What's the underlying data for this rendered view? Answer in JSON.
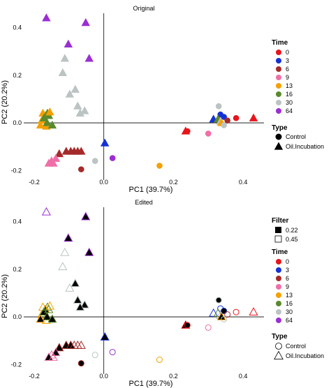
{
  "chart_data": [
    {
      "type": "scatter",
      "title": "Original",
      "xlabel": "PC1 (39.7%)",
      "ylabel": "PC2 (20.2%)",
      "xlim": [
        -0.23,
        0.46
      ],
      "ylim": [
        -0.24,
        0.46
      ],
      "x_ticks": [
        -0.2,
        0.0,
        0.2,
        0.4
      ],
      "x_tick_labels": [
        "-0.2",
        "0.0",
        "0.2",
        "0.4"
      ],
      "y_ticks": [
        -0.2,
        0.0,
        0.2,
        0.4
      ],
      "y_tick_labels": [
        "-0.2",
        "0.0",
        "0.2",
        "0.4"
      ],
      "zero_lines": true,
      "grid": false,
      "points": [
        {
          "x": -0.175,
          "y": 0.04,
          "time": "13",
          "type": "Oil.Incubation"
        },
        {
          "x": -0.168,
          "y": 0.03,
          "time": "13",
          "type": "Oil.Incubation"
        },
        {
          "x": -0.178,
          "y": 0.01,
          "time": "13",
          "type": "Oil.Incubation"
        },
        {
          "x": -0.182,
          "y": -0.01,
          "time": "13",
          "type": "Oil.Incubation"
        },
        {
          "x": -0.165,
          "y": -0.015,
          "time": "13",
          "type": "Oil.Incubation"
        },
        {
          "x": -0.172,
          "y": 0.02,
          "time": "16",
          "type": "Oil.Incubation"
        },
        {
          "x": -0.158,
          "y": 0.03,
          "time": "16",
          "type": "Oil.Incubation"
        },
        {
          "x": -0.163,
          "y": 0.0,
          "time": "16",
          "type": "Oil.Incubation"
        },
        {
          "x": -0.148,
          "y": -0.01,
          "time": "16",
          "type": "Oil.Incubation"
        },
        {
          "x": -0.162,
          "y": 0.04,
          "time": "16",
          "type": "Oil.Incubation"
        },
        {
          "x": -0.155,
          "y": 0.045,
          "time": "13",
          "type": "Oil.Incubation"
        },
        {
          "x": -0.165,
          "y": 0.44,
          "time": "64",
          "type": "Oil.Incubation"
        },
        {
          "x": -0.052,
          "y": 0.42,
          "time": "64",
          "type": "Oil.Incubation"
        },
        {
          "x": -0.102,
          "y": 0.33,
          "time": "64",
          "type": "Oil.Incubation"
        },
        {
          "x": -0.042,
          "y": 0.27,
          "time": "64",
          "type": "Oil.Incubation"
        },
        {
          "x": -0.112,
          "y": 0.27,
          "time": "30",
          "type": "Oil.Incubation"
        },
        {
          "x": -0.118,
          "y": 0.21,
          "time": "30",
          "type": "Oil.Incubation"
        },
        {
          "x": -0.082,
          "y": 0.14,
          "time": "30",
          "type": "Oil.Incubation"
        },
        {
          "x": -0.098,
          "y": 0.12,
          "time": "30",
          "type": "Oil.Incubation"
        },
        {
          "x": -0.075,
          "y": 0.07,
          "time": "30",
          "type": "Oil.Incubation"
        },
        {
          "x": -0.055,
          "y": 0.05,
          "time": "30",
          "type": "Oil.Incubation"
        },
        {
          "x": -0.068,
          "y": 0.04,
          "time": "30",
          "type": "Oil.Incubation"
        },
        {
          "x": -0.108,
          "y": -0.12,
          "time": "6",
          "type": "Oil.Incubation"
        },
        {
          "x": -0.095,
          "y": -0.12,
          "time": "6",
          "type": "Oil.Incubation"
        },
        {
          "x": -0.085,
          "y": -0.12,
          "time": "6",
          "type": "Oil.Incubation"
        },
        {
          "x": -0.075,
          "y": -0.12,
          "time": "6",
          "type": "Oil.Incubation"
        },
        {
          "x": -0.065,
          "y": -0.12,
          "time": "6",
          "type": "Oil.Incubation"
        },
        {
          "x": -0.128,
          "y": -0.13,
          "time": "6",
          "type": "Oil.Incubation"
        },
        {
          "x": -0.138,
          "y": -0.15,
          "time": "9",
          "type": "Oil.Incubation"
        },
        {
          "x": -0.15,
          "y": -0.16,
          "time": "9",
          "type": "Oil.Incubation"
        },
        {
          "x": -0.158,
          "y": -0.17,
          "time": "9",
          "type": "Oil.Incubation"
        },
        {
          "x": -0.145,
          "y": -0.17,
          "time": "9",
          "type": "Oil.Incubation"
        },
        {
          "x": -0.065,
          "y": -0.195,
          "time": "6",
          "type": "Control"
        },
        {
          "x": -0.025,
          "y": -0.16,
          "time": "30",
          "type": "Control"
        },
        {
          "x": 0.003,
          "y": -0.085,
          "time": "3",
          "type": "Oil.Incubation"
        },
        {
          "x": 0.025,
          "y": -0.148,
          "time": "64",
          "type": "Control"
        },
        {
          "x": 0.16,
          "y": -0.18,
          "time": "13",
          "type": "Control"
        },
        {
          "x": 0.235,
          "y": -0.035,
          "time": "0",
          "type": "Oil.Incubation"
        },
        {
          "x": 0.24,
          "y": -0.035,
          "time": "0",
          "type": "Control"
        },
        {
          "x": 0.3,
          "y": -0.045,
          "time": "9",
          "type": "Control"
        },
        {
          "x": 0.315,
          "y": 0.015,
          "time": "3",
          "type": "Oil.Incubation"
        },
        {
          "x": 0.33,
          "y": 0.07,
          "time": "30",
          "type": "Control"
        },
        {
          "x": 0.335,
          "y": 0.035,
          "time": "3",
          "type": "Control"
        },
        {
          "x": 0.345,
          "y": 0.025,
          "time": "3",
          "type": "Control"
        },
        {
          "x": 0.328,
          "y": 0.015,
          "time": "16",
          "type": "Oil.Incubation"
        },
        {
          "x": 0.335,
          "y": 0.005,
          "time": "30",
          "type": "Oil.Incubation"
        },
        {
          "x": 0.338,
          "y": 0.0,
          "time": "13",
          "type": "Oil.Incubation"
        },
        {
          "x": 0.345,
          "y": -0.01,
          "time": "30",
          "type": "Control"
        },
        {
          "x": 0.355,
          "y": 0.01,
          "time": "6",
          "type": "Control"
        },
        {
          "x": 0.38,
          "y": 0.02,
          "time": "0",
          "type": "Control"
        },
        {
          "x": 0.43,
          "y": 0.02,
          "time": "0",
          "type": "Oil.Incubation"
        }
      ]
    },
    {
      "type": "scatter",
      "title": "Edited",
      "xlabel": "PC1 (39.7%)",
      "ylabel": "PC2 (20.2%)",
      "xlim": [
        -0.23,
        0.46
      ],
      "ylim": [
        -0.24,
        0.46
      ],
      "x_ticks": [
        -0.2,
        0.0,
        0.2,
        0.4
      ],
      "x_tick_labels": [
        "-0.2",
        "0.0",
        "0.2",
        "0.4"
      ],
      "y_ticks": [
        -0.2,
        0.0,
        0.2,
        0.4
      ],
      "y_tick_labels": [
        "-0.2",
        "0.0",
        "0.2",
        "0.4"
      ],
      "zero_lines": true,
      "grid": false,
      "points": [
        {
          "x": -0.175,
          "y": 0.04,
          "time": "13",
          "type": "Oil.Incubation",
          "filter": "0.45"
        },
        {
          "x": -0.168,
          "y": 0.03,
          "time": "13",
          "type": "Oil.Incubation",
          "filter": "0.22"
        },
        {
          "x": -0.178,
          "y": 0.01,
          "time": "13",
          "type": "Oil.Incubation",
          "filter": "0.45"
        },
        {
          "x": -0.182,
          "y": -0.01,
          "time": "13",
          "type": "Oil.Incubation",
          "filter": "0.22"
        },
        {
          "x": -0.165,
          "y": -0.015,
          "time": "13",
          "type": "Oil.Incubation",
          "filter": "0.45"
        },
        {
          "x": -0.172,
          "y": 0.02,
          "time": "16",
          "type": "Oil.Incubation",
          "filter": "0.22"
        },
        {
          "x": -0.158,
          "y": 0.03,
          "time": "16",
          "type": "Oil.Incubation",
          "filter": "0.45"
        },
        {
          "x": -0.163,
          "y": 0.0,
          "time": "16",
          "type": "Oil.Incubation",
          "filter": "0.22"
        },
        {
          "x": -0.148,
          "y": -0.01,
          "time": "16",
          "type": "Oil.Incubation",
          "filter": "0.22"
        },
        {
          "x": -0.162,
          "y": 0.04,
          "time": "16",
          "type": "Oil.Incubation",
          "filter": "0.45"
        },
        {
          "x": -0.155,
          "y": 0.045,
          "time": "13",
          "type": "Oil.Incubation",
          "filter": "0.45"
        },
        {
          "x": -0.165,
          "y": 0.44,
          "time": "64",
          "type": "Oil.Incubation",
          "filter": "0.45"
        },
        {
          "x": -0.052,
          "y": 0.42,
          "time": "64",
          "type": "Oil.Incubation",
          "filter": "0.22"
        },
        {
          "x": -0.102,
          "y": 0.33,
          "time": "64",
          "type": "Oil.Incubation",
          "filter": "0.22"
        },
        {
          "x": -0.042,
          "y": 0.27,
          "time": "64",
          "type": "Oil.Incubation",
          "filter": "0.22"
        },
        {
          "x": -0.112,
          "y": 0.27,
          "time": "30",
          "type": "Oil.Incubation",
          "filter": "0.45"
        },
        {
          "x": -0.118,
          "y": 0.21,
          "time": "30",
          "type": "Oil.Incubation",
          "filter": "0.45"
        },
        {
          "x": -0.082,
          "y": 0.14,
          "time": "30",
          "type": "Oil.Incubation",
          "filter": "0.22"
        },
        {
          "x": -0.098,
          "y": 0.12,
          "time": "30",
          "type": "Oil.Incubation",
          "filter": "0.45"
        },
        {
          "x": -0.075,
          "y": 0.07,
          "time": "30",
          "type": "Oil.Incubation",
          "filter": "0.22"
        },
        {
          "x": -0.055,
          "y": 0.05,
          "time": "30",
          "type": "Oil.Incubation",
          "filter": "0.22"
        },
        {
          "x": -0.068,
          "y": 0.04,
          "time": "30",
          "type": "Oil.Incubation",
          "filter": "0.22"
        },
        {
          "x": -0.108,
          "y": -0.12,
          "time": "6",
          "type": "Oil.Incubation",
          "filter": "0.22"
        },
        {
          "x": -0.095,
          "y": -0.12,
          "time": "6",
          "type": "Oil.Incubation",
          "filter": "0.22"
        },
        {
          "x": -0.085,
          "y": -0.12,
          "time": "6",
          "type": "Oil.Incubation",
          "filter": "0.45"
        },
        {
          "x": -0.075,
          "y": -0.12,
          "time": "6",
          "type": "Oil.Incubation",
          "filter": "0.45"
        },
        {
          "x": -0.065,
          "y": -0.12,
          "time": "6",
          "type": "Oil.Incubation",
          "filter": "0.45"
        },
        {
          "x": -0.128,
          "y": -0.13,
          "time": "6",
          "type": "Oil.Incubation",
          "filter": "0.22"
        },
        {
          "x": -0.138,
          "y": -0.15,
          "time": "9",
          "type": "Oil.Incubation",
          "filter": "0.22"
        },
        {
          "x": -0.15,
          "y": -0.16,
          "time": "9",
          "type": "Oil.Incubation",
          "filter": "0.45"
        },
        {
          "x": -0.158,
          "y": -0.17,
          "time": "9",
          "type": "Oil.Incubation",
          "filter": "0.22"
        },
        {
          "x": -0.145,
          "y": -0.17,
          "time": "9",
          "type": "Oil.Incubation",
          "filter": "0.45"
        },
        {
          "x": -0.065,
          "y": -0.195,
          "time": "6",
          "type": "Control",
          "filter": "0.22"
        },
        {
          "x": -0.025,
          "y": -0.16,
          "time": "30",
          "type": "Control",
          "filter": "0.45"
        },
        {
          "x": 0.003,
          "y": -0.085,
          "time": "3",
          "type": "Oil.Incubation",
          "filter": "0.22"
        },
        {
          "x": 0.025,
          "y": -0.148,
          "time": "64",
          "type": "Control",
          "filter": "0.45"
        },
        {
          "x": 0.16,
          "y": -0.18,
          "time": "13",
          "type": "Control",
          "filter": "0.45"
        },
        {
          "x": 0.235,
          "y": -0.035,
          "time": "0",
          "type": "Oil.Incubation",
          "filter": "0.22"
        },
        {
          "x": 0.24,
          "y": -0.035,
          "time": "0",
          "type": "Control",
          "filter": "0.22"
        },
        {
          "x": 0.3,
          "y": -0.045,
          "time": "9",
          "type": "Control",
          "filter": "0.45"
        },
        {
          "x": 0.315,
          "y": 0.015,
          "time": "3",
          "type": "Oil.Incubation",
          "filter": "0.45"
        },
        {
          "x": 0.33,
          "y": 0.07,
          "time": "30",
          "type": "Control",
          "filter": "0.22"
        },
        {
          "x": 0.335,
          "y": 0.035,
          "time": "3",
          "type": "Control",
          "filter": "0.45"
        },
        {
          "x": 0.345,
          "y": 0.025,
          "time": "3",
          "type": "Control",
          "filter": "0.22"
        },
        {
          "x": 0.328,
          "y": 0.015,
          "time": "16",
          "type": "Oil.Incubation",
          "filter": "0.45"
        },
        {
          "x": 0.335,
          "y": 0.005,
          "time": "30",
          "type": "Oil.Incubation",
          "filter": "0.45"
        },
        {
          "x": 0.338,
          "y": 0.0,
          "time": "13",
          "type": "Oil.Incubation",
          "filter": "0.22"
        },
        {
          "x": 0.345,
          "y": -0.01,
          "time": "30",
          "type": "Control",
          "filter": "0.45"
        },
        {
          "x": 0.355,
          "y": 0.01,
          "time": "6",
          "type": "Control",
          "filter": "0.45"
        },
        {
          "x": 0.38,
          "y": 0.02,
          "time": "0",
          "type": "Control",
          "filter": "0.45"
        },
        {
          "x": 0.43,
          "y": 0.02,
          "time": "0",
          "type": "Oil.Incubation",
          "filter": "0.45"
        }
      ]
    }
  ],
  "time_colors": {
    "0": "#e8141b",
    "3": "#1531d6",
    "6": "#a52a2a",
    "9": "#f06fa8",
    "13": "#f5a000",
    "16": "#5a8a2c",
    "30": "#bcc3c3",
    "64": "#9a2fd2"
  },
  "legends": {
    "filter": {
      "title": "Filter",
      "items": [
        {
          "label": "0.22",
          "shape": "filled-square"
        },
        {
          "label": "0.45",
          "shape": "open-square"
        }
      ]
    },
    "time": {
      "title": "Time",
      "items": [
        "0",
        "3",
        "6",
        "9",
        "13",
        "16",
        "30",
        "64"
      ]
    },
    "type": {
      "title": "Type",
      "items": [
        {
          "label": "Control",
          "shape": "circle"
        },
        {
          "label": "Oil.Incubation",
          "shape": "triangle"
        }
      ]
    }
  }
}
